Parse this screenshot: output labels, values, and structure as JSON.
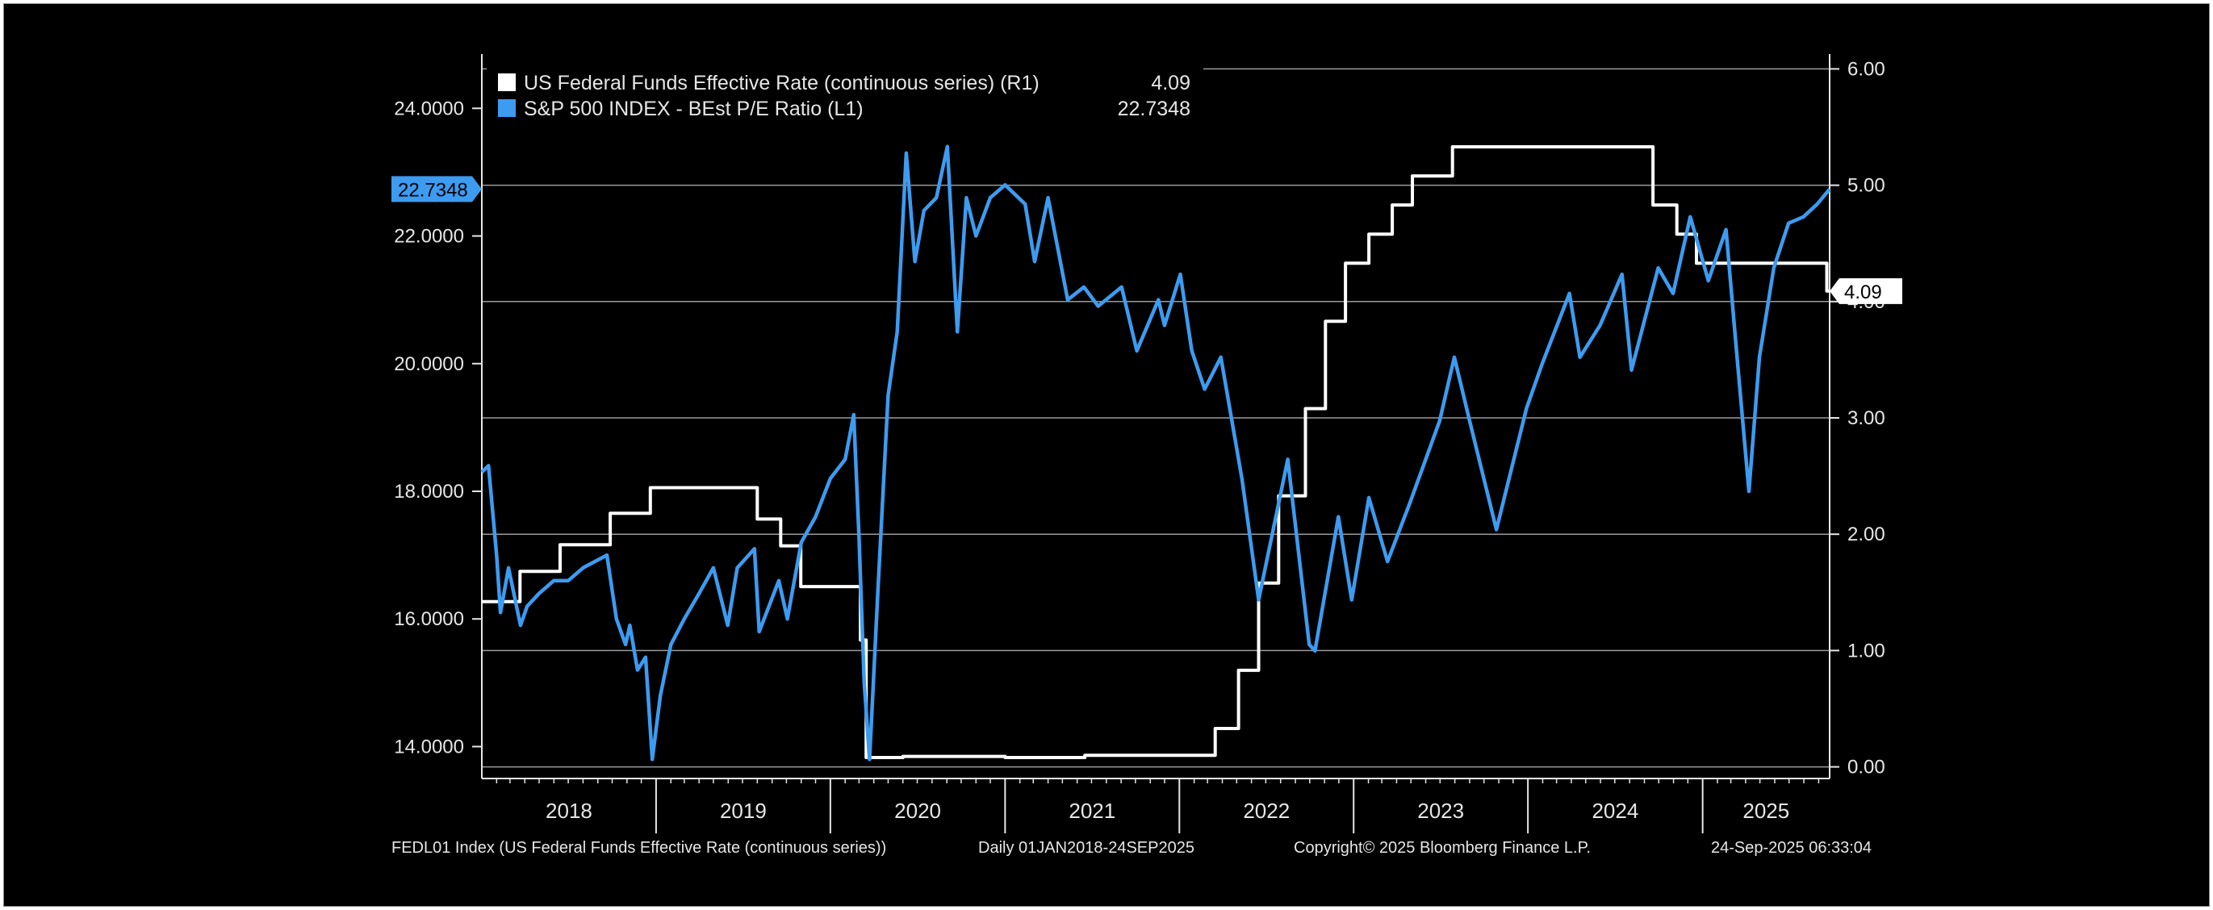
{
  "footer": {
    "source": "FEDL01 Index (US Federal Funds Effective Rate (continuous series))",
    "range": "Daily 01JAN2018-24SEP2025",
    "copyright": "Copyright© 2025 Bloomberg Finance L.P.",
    "timestamp": "24-Sep-2025 06:33:04"
  },
  "colors": {
    "background": "#000000",
    "pe_line": "#3d9bf0",
    "rate_line": "#ffffff",
    "grid": "#9a9a9a",
    "text": "#e6e6e6"
  },
  "chart_data": {
    "type": "line",
    "x_range": [
      "2018-01-01",
      "2025-09-24"
    ],
    "x_ticks": [
      "2018",
      "2019",
      "2020",
      "2021",
      "2022",
      "2023",
      "2024",
      "2025"
    ],
    "y_left": {
      "label_axis": "L1",
      "lim": [
        13.5,
        24.8
      ],
      "ticks": [
        "14.0000",
        "16.0000",
        "18.0000",
        "20.0000",
        "22.0000",
        "24.0000"
      ]
    },
    "y_right": {
      "label_axis": "R1",
      "lim": [
        -0.1,
        6.1
      ],
      "ticks": [
        "0.00",
        "1.00",
        "2.00",
        "3.00",
        "4.00",
        "5.00",
        "6.00"
      ]
    },
    "grid": true,
    "legend_position": "top-left",
    "series": [
      {
        "name": "US Federal Funds Effective Rate (continuous series)",
        "axis": "R1",
        "color": "#ffffff",
        "last_value": "4.09",
        "step": true,
        "points": [
          [
            "2018-01-01",
            1.42
          ],
          [
            "2018-03-22",
            1.68
          ],
          [
            "2018-06-14",
            1.91
          ],
          [
            "2018-09-27",
            2.18
          ],
          [
            "2018-12-20",
            2.4
          ],
          [
            "2019-08-01",
            2.13
          ],
          [
            "2019-09-19",
            1.9
          ],
          [
            "2019-10-31",
            1.55
          ],
          [
            "2020-03-04",
            1.09
          ],
          [
            "2020-03-16",
            0.08
          ],
          [
            "2020-06-01",
            0.09
          ],
          [
            "2021-01-01",
            0.08
          ],
          [
            "2021-06-17",
            0.1
          ],
          [
            "2022-03-17",
            0.33
          ],
          [
            "2022-05-05",
            0.83
          ],
          [
            "2022-06-16",
            1.58
          ],
          [
            "2022-07-28",
            2.33
          ],
          [
            "2022-09-22",
            3.08
          ],
          [
            "2022-11-03",
            3.83
          ],
          [
            "2022-12-15",
            4.33
          ],
          [
            "2023-02-02",
            4.58
          ],
          [
            "2023-03-23",
            4.83
          ],
          [
            "2023-05-04",
            5.08
          ],
          [
            "2023-07-27",
            5.33
          ],
          [
            "2024-09-19",
            4.83
          ],
          [
            "2024-11-08",
            4.58
          ],
          [
            "2024-12-19",
            4.33
          ],
          [
            "2025-09-18",
            4.09
          ],
          [
            "2025-09-24",
            4.09
          ]
        ]
      },
      {
        "name": "S&P 500 INDEX - BEst P/E Ratio",
        "axis": "L1",
        "color": "#3d9bf0",
        "last_value": "22.7348",
        "step": false,
        "points": [
          [
            "2018-01-01",
            18.3
          ],
          [
            "2018-01-15",
            18.4
          ],
          [
            "2018-02-01",
            17.0
          ],
          [
            "2018-02-09",
            16.1
          ],
          [
            "2018-02-26",
            16.8
          ],
          [
            "2018-03-23",
            15.9
          ],
          [
            "2018-04-06",
            16.2
          ],
          [
            "2018-05-01",
            16.4
          ],
          [
            "2018-06-01",
            16.6
          ],
          [
            "2018-07-01",
            16.6
          ],
          [
            "2018-08-01",
            16.8
          ],
          [
            "2018-09-20",
            17.0
          ],
          [
            "2018-10-10",
            16.0
          ],
          [
            "2018-10-29",
            15.6
          ],
          [
            "2018-11-07",
            15.9
          ],
          [
            "2018-11-23",
            15.2
          ],
          [
            "2018-12-10",
            15.4
          ],
          [
            "2018-12-24",
            13.8
          ],
          [
            "2019-01-10",
            14.8
          ],
          [
            "2019-02-01",
            15.6
          ],
          [
            "2019-03-01",
            16.0
          ],
          [
            "2019-04-01",
            16.4
          ],
          [
            "2019-05-01",
            16.8
          ],
          [
            "2019-05-31",
            15.9
          ],
          [
            "2019-06-20",
            16.8
          ],
          [
            "2019-07-26",
            17.1
          ],
          [
            "2019-08-05",
            15.8
          ],
          [
            "2019-09-15",
            16.6
          ],
          [
            "2019-10-03",
            16.0
          ],
          [
            "2019-11-01",
            17.2
          ],
          [
            "2019-12-01",
            17.6
          ],
          [
            "2020-01-01",
            18.2
          ],
          [
            "2020-02-01",
            18.5
          ],
          [
            "2020-02-19",
            19.2
          ],
          [
            "2020-03-01",
            17.3
          ],
          [
            "2020-03-12",
            15.0
          ],
          [
            "2020-03-23",
            13.8
          ],
          [
            "2020-04-10",
            16.5
          ],
          [
            "2020-05-01",
            19.5
          ],
          [
            "2020-05-20",
            20.5
          ],
          [
            "2020-06-08",
            23.3
          ],
          [
            "2020-06-26",
            21.6
          ],
          [
            "2020-07-15",
            22.4
          ],
          [
            "2020-08-10",
            22.6
          ],
          [
            "2020-09-02",
            23.4
          ],
          [
            "2020-09-23",
            20.5
          ],
          [
            "2020-10-12",
            22.6
          ],
          [
            "2020-11-01",
            22.0
          ],
          [
            "2020-12-01",
            22.6
          ],
          [
            "2021-01-01",
            22.8
          ],
          [
            "2021-02-12",
            22.5
          ],
          [
            "2021-03-04",
            21.6
          ],
          [
            "2021-04-01",
            22.6
          ],
          [
            "2021-05-12",
            21.0
          ],
          [
            "2021-06-15",
            21.2
          ],
          [
            "2021-07-15",
            20.9
          ],
          [
            "2021-09-02",
            21.2
          ],
          [
            "2021-10-04",
            20.2
          ],
          [
            "2021-11-18",
            21.0
          ],
          [
            "2021-12-01",
            20.6
          ],
          [
            "2022-01-03",
            21.4
          ],
          [
            "2022-01-27",
            20.2
          ],
          [
            "2022-02-23",
            19.6
          ],
          [
            "2022-03-29",
            20.1
          ],
          [
            "2022-05-12",
            18.2
          ],
          [
            "2022-06-16",
            16.3
          ],
          [
            "2022-08-16",
            18.5
          ],
          [
            "2022-09-30",
            15.6
          ],
          [
            "2022-10-12",
            15.5
          ],
          [
            "2022-11-30",
            17.6
          ],
          [
            "2022-12-28",
            16.3
          ],
          [
            "2023-02-02",
            17.9
          ],
          [
            "2023-03-13",
            16.9
          ],
          [
            "2023-04-28",
            17.8
          ],
          [
            "2023-06-30",
            19.1
          ],
          [
            "2023-07-31",
            20.1
          ],
          [
            "2023-09-01",
            19.1
          ],
          [
            "2023-10-27",
            17.4
          ],
          [
            "2023-12-29",
            19.3
          ],
          [
            "2024-01-31",
            20.0
          ],
          [
            "2024-03-28",
            21.1
          ],
          [
            "2024-04-19",
            20.1
          ],
          [
            "2024-05-31",
            20.6
          ],
          [
            "2024-07-16",
            21.4
          ],
          [
            "2024-08-05",
            19.9
          ],
          [
            "2024-09-30",
            21.5
          ],
          [
            "2024-10-31",
            21.1
          ],
          [
            "2024-12-06",
            22.3
          ],
          [
            "2025-01-13",
            21.3
          ],
          [
            "2025-02-19",
            22.1
          ],
          [
            "2025-03-13",
            20.2
          ],
          [
            "2025-04-08",
            18.0
          ],
          [
            "2025-04-30",
            20.1
          ],
          [
            "2025-05-30",
            21.5
          ],
          [
            "2025-06-30",
            22.2
          ],
          [
            "2025-07-31",
            22.3
          ],
          [
            "2025-08-29",
            22.5
          ],
          [
            "2025-09-24",
            22.7348
          ]
        ]
      }
    ],
    "legend": [
      {
        "text": "US Federal Funds Effective Rate (continuous series)  (R1)",
        "value": "4.09",
        "color": "#ffffff"
      },
      {
        "text": "S&P 500 INDEX - BEst P/E Ratio (L1)",
        "value": "22.7348",
        "color": "#3d9bf0"
      }
    ],
    "last_value_tags": {
      "left": "22.7348",
      "right": "4.09"
    }
  }
}
